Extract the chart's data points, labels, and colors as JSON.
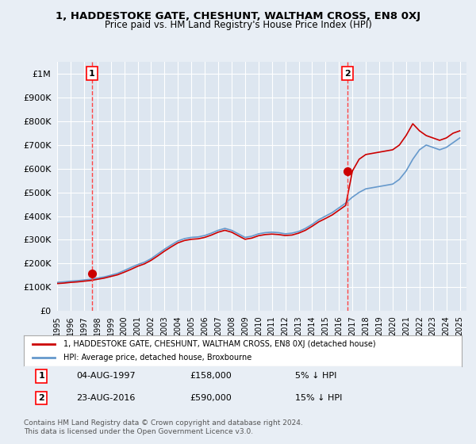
{
  "title": "1, HADDESTOKE GATE, CHESHUNT, WALTHAM CROSS, EN8 0XJ",
  "subtitle": "Price paid vs. HM Land Registry's House Price Index (HPI)",
  "legend_line1": "1, HADDESTOKE GATE, CHESHUNT, WALTHAM CROSS, EN8 0XJ (detached house)",
  "legend_line2": "HPI: Average price, detached house, Broxbourne",
  "point1_label": "1",
  "point1_date": "04-AUG-1997",
  "point1_price": "£158,000",
  "point1_hpi": "5% ↓ HPI",
  "point1_year": 1997.59,
  "point1_value": 158000,
  "point2_label": "2",
  "point2_date": "23-AUG-2016",
  "point2_price": "£590,000",
  "point2_hpi": "15% ↓ HPI",
  "point2_year": 2016.64,
  "point2_value": 590000,
  "footer": "Contains HM Land Registry data © Crown copyright and database right 2024.\nThis data is licensed under the Open Government Licence v3.0.",
  "red_color": "#cc0000",
  "blue_color": "#6699cc",
  "dashed_color": "#ff4444",
  "bg_color": "#e8eef5",
  "plot_bg": "#dde6f0",
  "grid_color": "#ffffff",
  "ylim": [
    0,
    1050000
  ],
  "xlim_start": 1995.0,
  "xlim_end": 2025.5,
  "hpi_years": [
    1995,
    1995.5,
    1996,
    1996.5,
    1997,
    1997.5,
    1998,
    1998.5,
    1999,
    1999.5,
    2000,
    2000.5,
    2001,
    2001.5,
    2002,
    2002.5,
    2003,
    2003.5,
    2004,
    2004.5,
    2005,
    2005.5,
    2006,
    2006.5,
    2007,
    2007.5,
    2008,
    2008.5,
    2009,
    2009.5,
    2010,
    2010.5,
    2011,
    2011.5,
    2012,
    2012.5,
    2013,
    2013.5,
    2014,
    2014.5,
    2015,
    2015.5,
    2016,
    2016.5,
    2017,
    2017.5,
    2018,
    2018.5,
    2019,
    2019.5,
    2020,
    2020.5,
    2021,
    2021.5,
    2022,
    2022.5,
    2023,
    2023.5,
    2024,
    2024.5,
    2025
  ],
  "hpi_values": [
    120000,
    122000,
    125000,
    127000,
    130000,
    133000,
    138000,
    143000,
    150000,
    158000,
    170000,
    183000,
    195000,
    205000,
    220000,
    240000,
    260000,
    278000,
    295000,
    305000,
    310000,
    312000,
    318000,
    328000,
    340000,
    348000,
    340000,
    325000,
    310000,
    315000,
    325000,
    330000,
    332000,
    330000,
    325000,
    328000,
    335000,
    348000,
    365000,
    385000,
    400000,
    415000,
    435000,
    455000,
    480000,
    500000,
    515000,
    520000,
    525000,
    530000,
    535000,
    555000,
    590000,
    640000,
    680000,
    700000,
    690000,
    680000,
    690000,
    710000,
    730000
  ],
  "red_years": [
    1997.59,
    2016.64
  ],
  "red_values": [
    158000,
    590000
  ],
  "red_line_years": [
    1995,
    1995.5,
    1996,
    1996.5,
    1997,
    1997.5,
    1998,
    1998.5,
    1999,
    1999.5,
    2000,
    2000.5,
    2001,
    2001.5,
    2002,
    2002.5,
    2003,
    2003.5,
    2004,
    2004.5,
    2005,
    2005.5,
    2006,
    2006.5,
    2007,
    2007.5,
    2008,
    2008.5,
    2009,
    2009.5,
    2010,
    2010.5,
    2011,
    2011.5,
    2012,
    2012.5,
    2013,
    2013.5,
    2014,
    2014.5,
    2015,
    2015.5,
    2016,
    2016.5,
    2017,
    2017.5,
    2018,
    2018.5,
    2019,
    2019.5,
    2020,
    2020.5,
    2021,
    2021.5,
    2022,
    2022.5,
    2023,
    2023.5,
    2024,
    2024.5,
    2025
  ],
  "red_line_values": [
    115000,
    117000,
    120000,
    122000,
    125000,
    128000,
    133000,
    138000,
    145000,
    152000,
    163000,
    175000,
    188000,
    198000,
    213000,
    232000,
    252000,
    270000,
    287000,
    297000,
    302000,
    304000,
    310000,
    320000,
    332000,
    340000,
    332000,
    317000,
    302000,
    307000,
    317000,
    322000,
    324000,
    322000,
    318000,
    320000,
    328000,
    340000,
    357000,
    376000,
    390000,
    405000,
    425000,
    445000,
    590000,
    640000,
    660000,
    665000,
    670000,
    675000,
    680000,
    700000,
    740000,
    790000,
    760000,
    740000,
    730000,
    720000,
    730000,
    750000,
    760000
  ]
}
